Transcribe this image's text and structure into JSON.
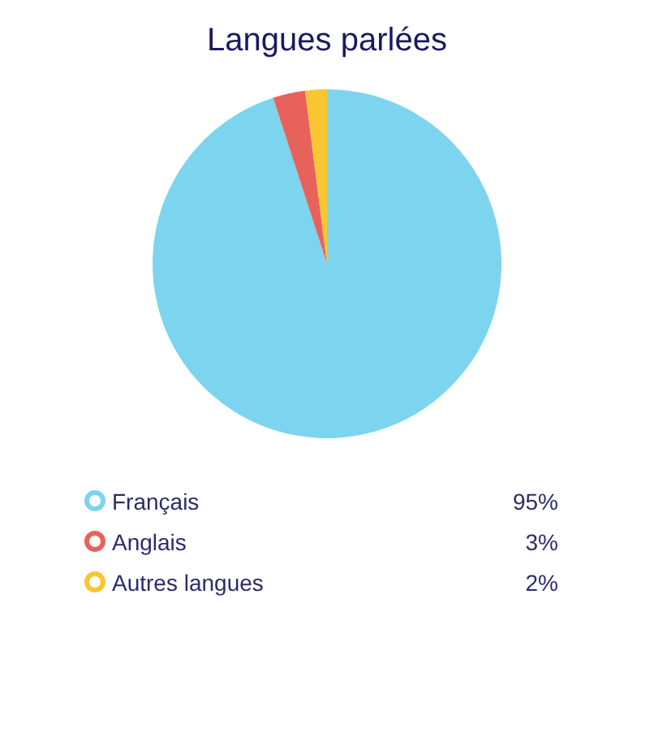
{
  "chart_data": {
    "type": "pie",
    "title": "Langues parlées",
    "categories": [
      "Français",
      "Anglais",
      "Autres langues"
    ],
    "values": [
      95,
      3,
      2
    ],
    "colors": [
      "#7dd4ee",
      "#e8625c",
      "#f8c630"
    ],
    "value_labels": [
      "95%",
      "3%",
      "2%"
    ],
    "legend": "bottom"
  }
}
